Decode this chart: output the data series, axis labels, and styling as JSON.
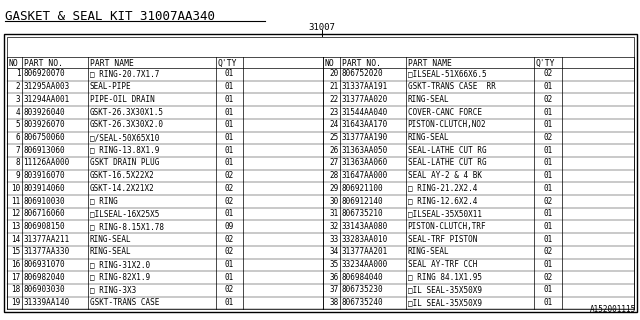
{
  "title": "GASKET & SEAL KIT 31007AA340",
  "subtitle": "31007",
  "footer": "A152001115",
  "rows_left": [
    [
      "1",
      "806920070",
      "□ RING-20.7X1.7",
      "01"
    ],
    [
      "2",
      "31295AA003",
      "SEAL-PIPE",
      "01"
    ],
    [
      "3",
      "31294AA001",
      "PIPE-OIL DRAIN",
      "01"
    ],
    [
      "4",
      "803926040",
      "GSKT-26.3X30X1.5",
      "01"
    ],
    [
      "5",
      "803926070",
      "GSKT-26.3X30X2.0",
      "01"
    ],
    [
      "6",
      "806750060",
      "□/SEAL-50X65X10",
      "01"
    ],
    [
      "7",
      "806913060",
      "□ RING-13.8X1.9",
      "01"
    ],
    [
      "8",
      "11126AA000",
      "GSKT DRAIN PLUG",
      "01"
    ],
    [
      "9",
      "803916070",
      "GSKT-16.5X22X2",
      "02"
    ],
    [
      "10",
      "803914060",
      "GSKT-14.2X21X2",
      "02"
    ],
    [
      "11",
      "806910030",
      "□ RING",
      "02"
    ],
    [
      "12",
      "806716060",
      "□ILSEAL-16X25X5",
      "01"
    ],
    [
      "13",
      "806908150",
      "□ RING-8.15X1.78",
      "09"
    ],
    [
      "14",
      "31377AA211",
      "RING-SEAL",
      "02"
    ],
    [
      "15",
      "31377AA330",
      "RING-SEAL",
      "02"
    ],
    [
      "16",
      "806931070",
      "□ RING-31X2.0",
      "01"
    ],
    [
      "17",
      "806982040",
      "□ RING-82X1.9",
      "01"
    ],
    [
      "18",
      "806903030",
      "□ RING-3X3",
      "02"
    ],
    [
      "19",
      "31339AA140",
      "GSKT-TRANS CASE",
      "01"
    ]
  ],
  "rows_right": [
    [
      "20",
      "806752020",
      "□ILSEAL-51X66X6.5",
      "02"
    ],
    [
      "21",
      "31337AA191",
      "GSKT-TRANS CASE  RR",
      "01"
    ],
    [
      "22",
      "31377AA020",
      "RING-SEAL",
      "02"
    ],
    [
      "23",
      "31544AA040",
      "COVER-CANC FORCE",
      "01"
    ],
    [
      "24",
      "31643AA170",
      "PISTON-CLUTCH,NO2",
      "01"
    ],
    [
      "25",
      "31377AA190",
      "RING-SEAL",
      "02"
    ],
    [
      "26",
      "31363AA050",
      "SEAL-LATHE CUT RG",
      "01"
    ],
    [
      "27",
      "31363AA060",
      "SEAL-LATHE CUT RG",
      "01"
    ],
    [
      "28",
      "31647AA000",
      "SEAL AY-2 & 4 BK",
      "01"
    ],
    [
      "29",
      "806921100",
      "□ RING-21.2X2.4",
      "01"
    ],
    [
      "30",
      "806912140",
      "□ RING-12.6X2.4",
      "02"
    ],
    [
      "31",
      "806735210",
      "□ILSEAL-35X50X11",
      "01"
    ],
    [
      "32",
      "33143AA080",
      "PISTON-CLUTCH,TRF",
      "01"
    ],
    [
      "33",
      "33283AA010",
      "SEAL-TRF PISTON",
      "01"
    ],
    [
      "34",
      "31377AA201",
      "RING-SEAL",
      "02"
    ],
    [
      "35",
      "33234AA000",
      "SEAL AY-TRF CCH",
      "01"
    ],
    [
      "36",
      "806984040",
      "□ RING 84.1X1.95",
      "02"
    ],
    [
      "37",
      "806735230",
      "□IL SEAL-35X50X9",
      "01"
    ],
    [
      "38",
      "806735240",
      "□IL SEAL-35X50X9",
      "01"
    ]
  ],
  "bg_color": "#ffffff",
  "text_color": "#000000",
  "border_color": "#000000"
}
